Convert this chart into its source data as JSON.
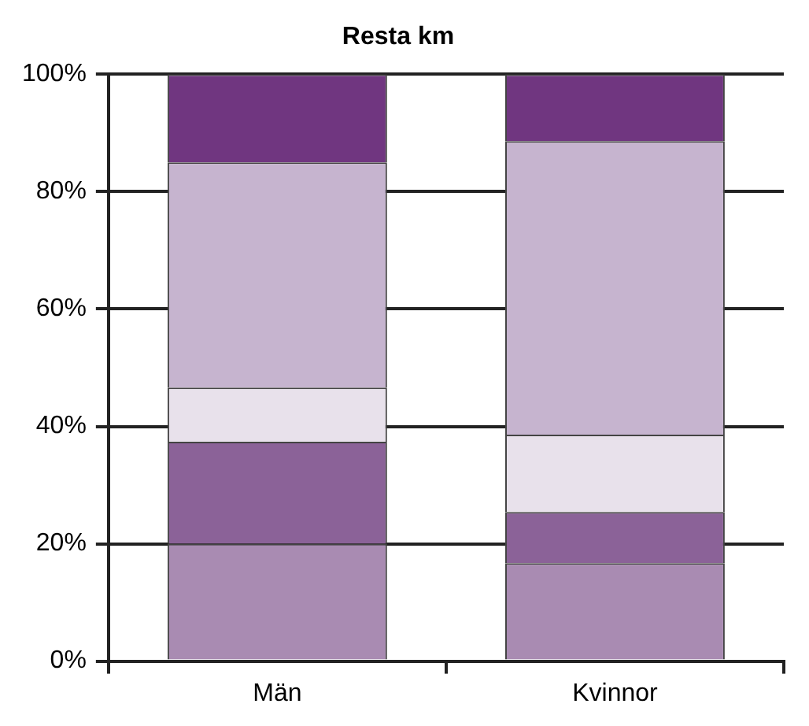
{
  "chart_data": {
    "type": "bar",
    "title": "Resta km",
    "categories": [
      "Män",
      "Kvinnor"
    ],
    "stacked": true,
    "ylim": [
      0,
      100
    ],
    "yticks": [
      {
        "value": 0,
        "label": "0%"
      },
      {
        "value": 20,
        "label": "20%"
      },
      {
        "value": 40,
        "label": "40%"
      },
      {
        "value": 60,
        "label": "60%"
      },
      {
        "value": 80,
        "label": "80%"
      },
      {
        "value": 100,
        "label": "100%"
      }
    ],
    "grid": "y",
    "legend": false,
    "series": [
      {
        "color": "#a98bb2",
        "values": [
          20,
          16.7
        ]
      },
      {
        "color": "#8b6298",
        "values": [
          17.4,
          8.7
        ]
      },
      {
        "color": "#e8e1eb",
        "values": [
          9.2,
          13.2
        ]
      },
      {
        "color": "#c6b4cf",
        "values": [
          38.4,
          50
        ]
      },
      {
        "color": "#703680",
        "values": [
          15,
          11.4
        ]
      }
    ]
  }
}
